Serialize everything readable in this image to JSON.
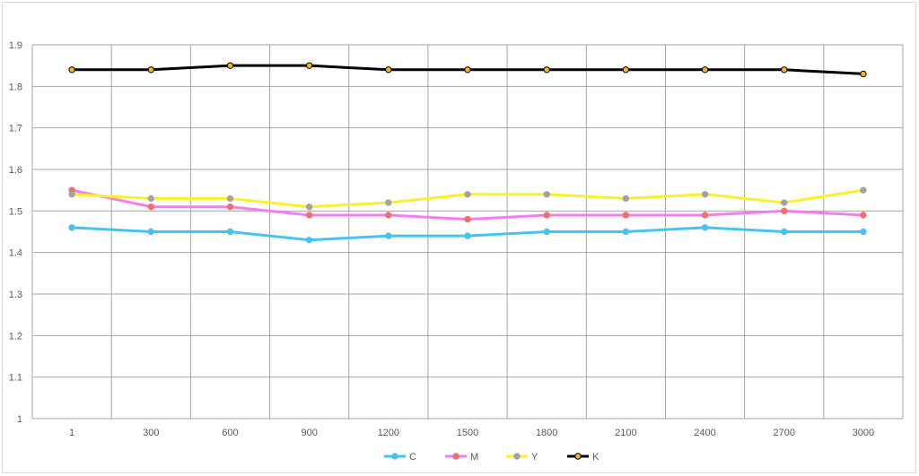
{
  "chart_data": {
    "type": "line",
    "categories": [
      "1",
      "300",
      "600",
      "900",
      "1200",
      "1500",
      "1800",
      "2100",
      "2400",
      "2700",
      "3000"
    ],
    "ylim": [
      1,
      1.9
    ],
    "yticks": [
      "1",
      "1.1",
      "1.2",
      "1.3",
      "1.4",
      "1.5",
      "1.6",
      "1.7",
      "1.8",
      "1.9"
    ],
    "grid": true,
    "legend": "bottom",
    "series": [
      {
        "name": "C",
        "color": "#45c4f0",
        "marker_color": "#45c4f0",
        "marker_edge": "#45c4f0",
        "values": [
          1.46,
          1.45,
          1.45,
          1.43,
          1.44,
          1.44,
          1.45,
          1.45,
          1.46,
          1.45,
          1.45
        ]
      },
      {
        "name": "M",
        "color": "#f77cf2",
        "marker_color": "#f2706b",
        "marker_edge": "#f2706b",
        "values": [
          1.55,
          1.51,
          1.51,
          1.49,
          1.49,
          1.48,
          1.49,
          1.49,
          1.49,
          1.5,
          1.49
        ]
      },
      {
        "name": "Y",
        "color": "#f7f22b",
        "marker_color": "#a3a3a3",
        "marker_edge": "#a3a3a3",
        "values": [
          1.54,
          1.53,
          1.53,
          1.51,
          1.52,
          1.54,
          1.54,
          1.53,
          1.54,
          1.52,
          1.55
        ]
      },
      {
        "name": "K",
        "color": "#000000",
        "marker_color": "#f2b824",
        "marker_edge": "#000000",
        "values": [
          1.84,
          1.84,
          1.85,
          1.85,
          1.84,
          1.84,
          1.84,
          1.84,
          1.84,
          1.84,
          1.83
        ]
      }
    ]
  }
}
